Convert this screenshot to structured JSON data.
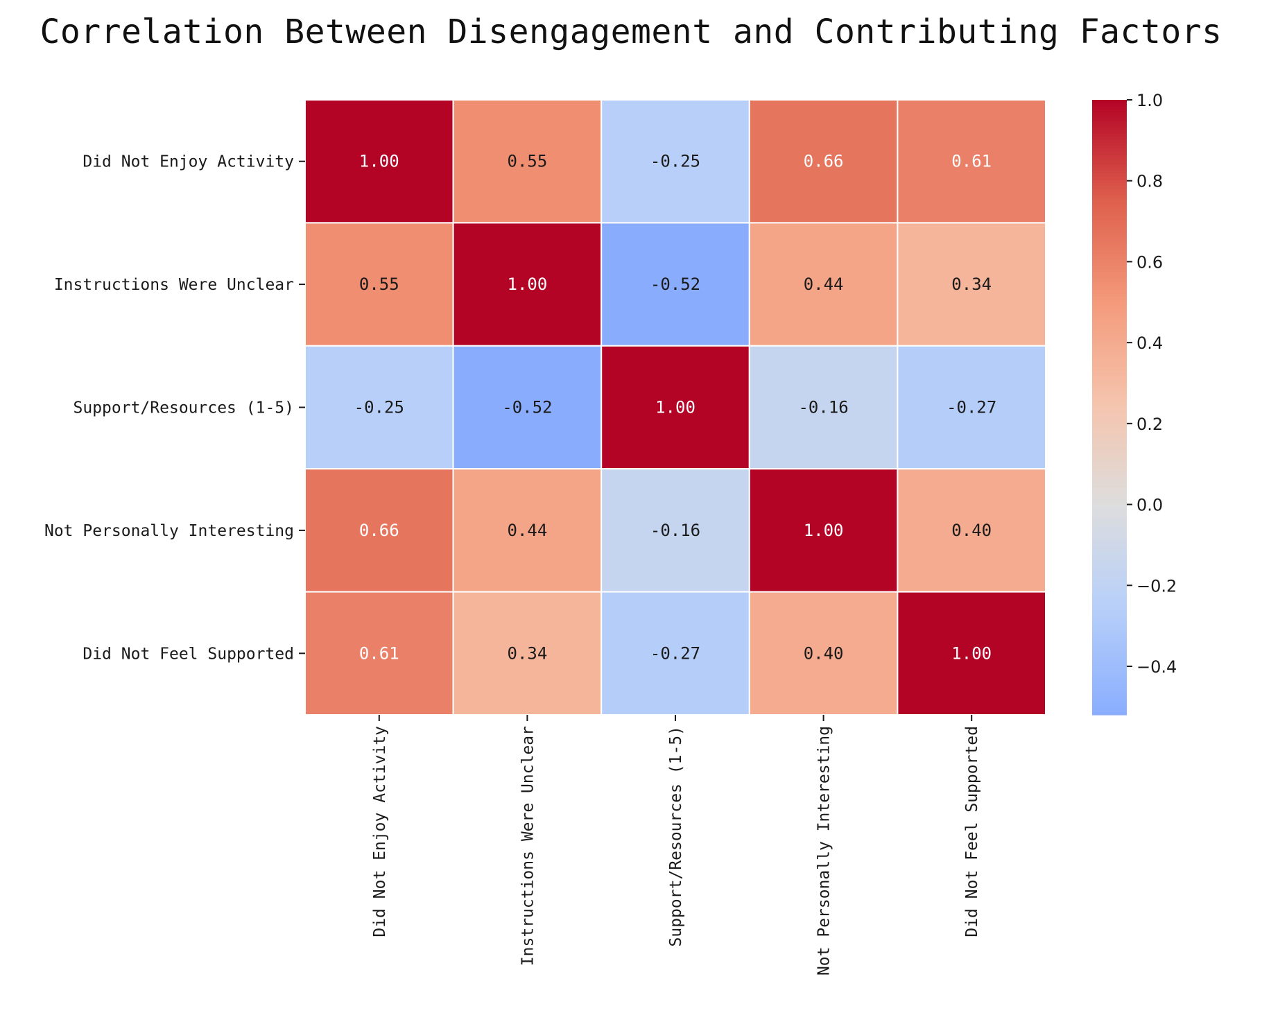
{
  "title": "Correlation Between Disengagement and Contributing Factors",
  "chart_data": {
    "type": "heatmap",
    "title": "Correlation Between Disengagement and Contributing Factors",
    "row_labels": [
      "Did Not Enjoy Activity",
      "Instructions Were Unclear",
      "Support/Resources (1-5)",
      "Not Personally Interesting",
      "Did Not Feel Supported"
    ],
    "col_labels": [
      "Did Not Enjoy Activity",
      "Instructions Were Unclear",
      "Support/Resources (1-5)",
      "Not Personally Interesting",
      "Did Not Feel Supported"
    ],
    "values": [
      [
        1.0,
        0.55,
        -0.25,
        0.66,
        0.61
      ],
      [
        0.55,
        1.0,
        -0.52,
        0.44,
        0.34
      ],
      [
        -0.25,
        -0.52,
        1.0,
        -0.16,
        -0.27
      ],
      [
        0.66,
        0.44,
        -0.16,
        1.0,
        0.4
      ],
      [
        0.61,
        0.34,
        -0.27,
        0.4,
        1.0
      ]
    ],
    "value_labels": [
      [
        "1.00",
        "0.55",
        "-0.25",
        "0.66",
        "0.61"
      ],
      [
        "0.55",
        "1.00",
        "-0.52",
        "0.44",
        "0.34"
      ],
      [
        "-0.25",
        "-0.52",
        "1.00",
        "-0.16",
        "-0.27"
      ],
      [
        "0.66",
        "0.44",
        "-0.16",
        "1.00",
        "0.40"
      ],
      [
        "0.61",
        "0.34",
        "-0.27",
        "0.40",
        "1.00"
      ]
    ],
    "colormap": "coolwarm",
    "colorbar": {
      "vmin": -0.52,
      "vmax": 1.0,
      "ticks": [
        1.0,
        0.8,
        0.6,
        0.4,
        0.2,
        0.0,
        -0.2,
        -0.4
      ],
      "tick_labels": [
        "1.0",
        "0.8",
        "0.6",
        "0.4",
        "0.2",
        "0.0",
        "−0.2",
        "−0.4"
      ]
    },
    "xlabel": "",
    "ylabel": ""
  }
}
